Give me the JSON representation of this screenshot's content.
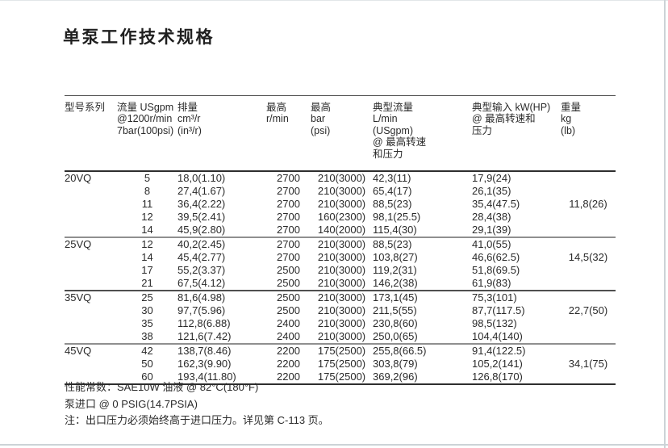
{
  "page": {
    "title": "单泵工作技术规格"
  },
  "table": {
    "columns": [
      {
        "id": "model",
        "header_lines": [
          "型号系列"
        ]
      },
      {
        "id": "flow",
        "header_lines": [
          "流量 USgpm",
          "@1200r/min",
          "7bar(100psi)"
        ]
      },
      {
        "id": "displacement",
        "header_lines": [
          "排量",
          "cm³/r",
          "(in³/r)"
        ]
      },
      {
        "id": "max-speed",
        "header_lines": [
          "最高",
          "r/min"
        ]
      },
      {
        "id": "max-pressure",
        "header_lines": [
          "最高",
          "bar",
          "(psi)"
        ]
      },
      {
        "id": "typical-flow",
        "header_lines": [
          "典型流量",
          "L/min",
          "(USgpm)",
          "@ 最高转速",
          "和压力"
        ]
      },
      {
        "id": "typical-input",
        "header_lines": [
          "典型输入 kW(HP)",
          "@ 最高转速和",
          "压力"
        ]
      },
      {
        "id": "weight",
        "header_lines": [
          "重量",
          "kg",
          "(lb)"
        ]
      }
    ],
    "sections": [
      {
        "model": "20VQ",
        "weight": "11,8(26)",
        "weight_pos": 50,
        "rows": [
          [
            "5",
            "18,0(1.10)",
            "2700",
            "210(3000)",
            "42,3(11)",
            "17,9(24)"
          ],
          [
            "8",
            "27,4(1.67)",
            "2700",
            "210(3000)",
            "65,4(17)",
            "26,1(35)"
          ],
          [
            "11",
            "36,4(2.22)",
            "2700",
            "210(3000)",
            "88,5(23)",
            "35,4(47.5)"
          ],
          [
            "12",
            "39,5(2.41)",
            "2700",
            "160(2300)",
            "98,1(25.5)",
            "28,4(38)"
          ],
          [
            "14",
            "45,9(2.80)",
            "2700",
            "140(2000)",
            "115,4(30)",
            "29,1(39)"
          ]
        ]
      },
      {
        "model": "25VQ",
        "weight": "14,5(32)",
        "weight_pos": 37.5,
        "rows": [
          [
            "12",
            "40,2(2.45)",
            "2700",
            "210(3000)",
            "88,5(23)",
            "41,0(55)"
          ],
          [
            "14",
            "45,4(2.77)",
            "2700",
            "210(3000)",
            "103,8(27)",
            "46,6(62.5)"
          ],
          [
            "17",
            "55,2(3.37)",
            "2500",
            "210(3000)",
            "119,2(31)",
            "51,8(69.5)"
          ],
          [
            "21",
            "67,5(4.12)",
            "2500",
            "210(3000)",
            "146,2(38)",
            "61,9(83)"
          ]
        ]
      },
      {
        "model": "35VQ",
        "weight": "22,7(50)",
        "weight_pos": 37.5,
        "rows": [
          [
            "25",
            "81,6(4.98)",
            "2500",
            "210(3000)",
            "173,1(45)",
            "75,3(101)"
          ],
          [
            "30",
            "97,7(5.96)",
            "2500",
            "210(3000)",
            "211,5(55)",
            "87,7(117.5)"
          ],
          [
            "35",
            "112,8(6.88)",
            "2400",
            "210(3000)",
            "230,8(60)",
            "98,5(132)"
          ],
          [
            "38",
            "121,6(7.42)",
            "2400",
            "210(3000)",
            "250,0(65)",
            "104,4(140)"
          ]
        ]
      },
      {
        "model": "45VQ",
        "weight": "34,1(75)",
        "weight_pos": 50,
        "rows": [
          [
            "42",
            "138,7(8.46)",
            "2200",
            "175(2500)",
            "255,8(66.5)",
            "91,4(122.5)"
          ],
          [
            "50",
            "162,3(9.90)",
            "2200",
            "175(2500)",
            "303,8(79)",
            "105,2(141)"
          ],
          [
            "60",
            "193,4(11.80)",
            "2200",
            "175(2500)",
            "369,2(96)",
            "126,8(170)"
          ]
        ]
      }
    ]
  },
  "notes": [
    "性能常数：SAE10W 油液 @ 82°C(180°F)",
    "泵进口 @ 0 PSIG(14.7PSIA)",
    "注：出口压力必须始终高于进口压力。详见第 C-113 页。"
  ]
}
